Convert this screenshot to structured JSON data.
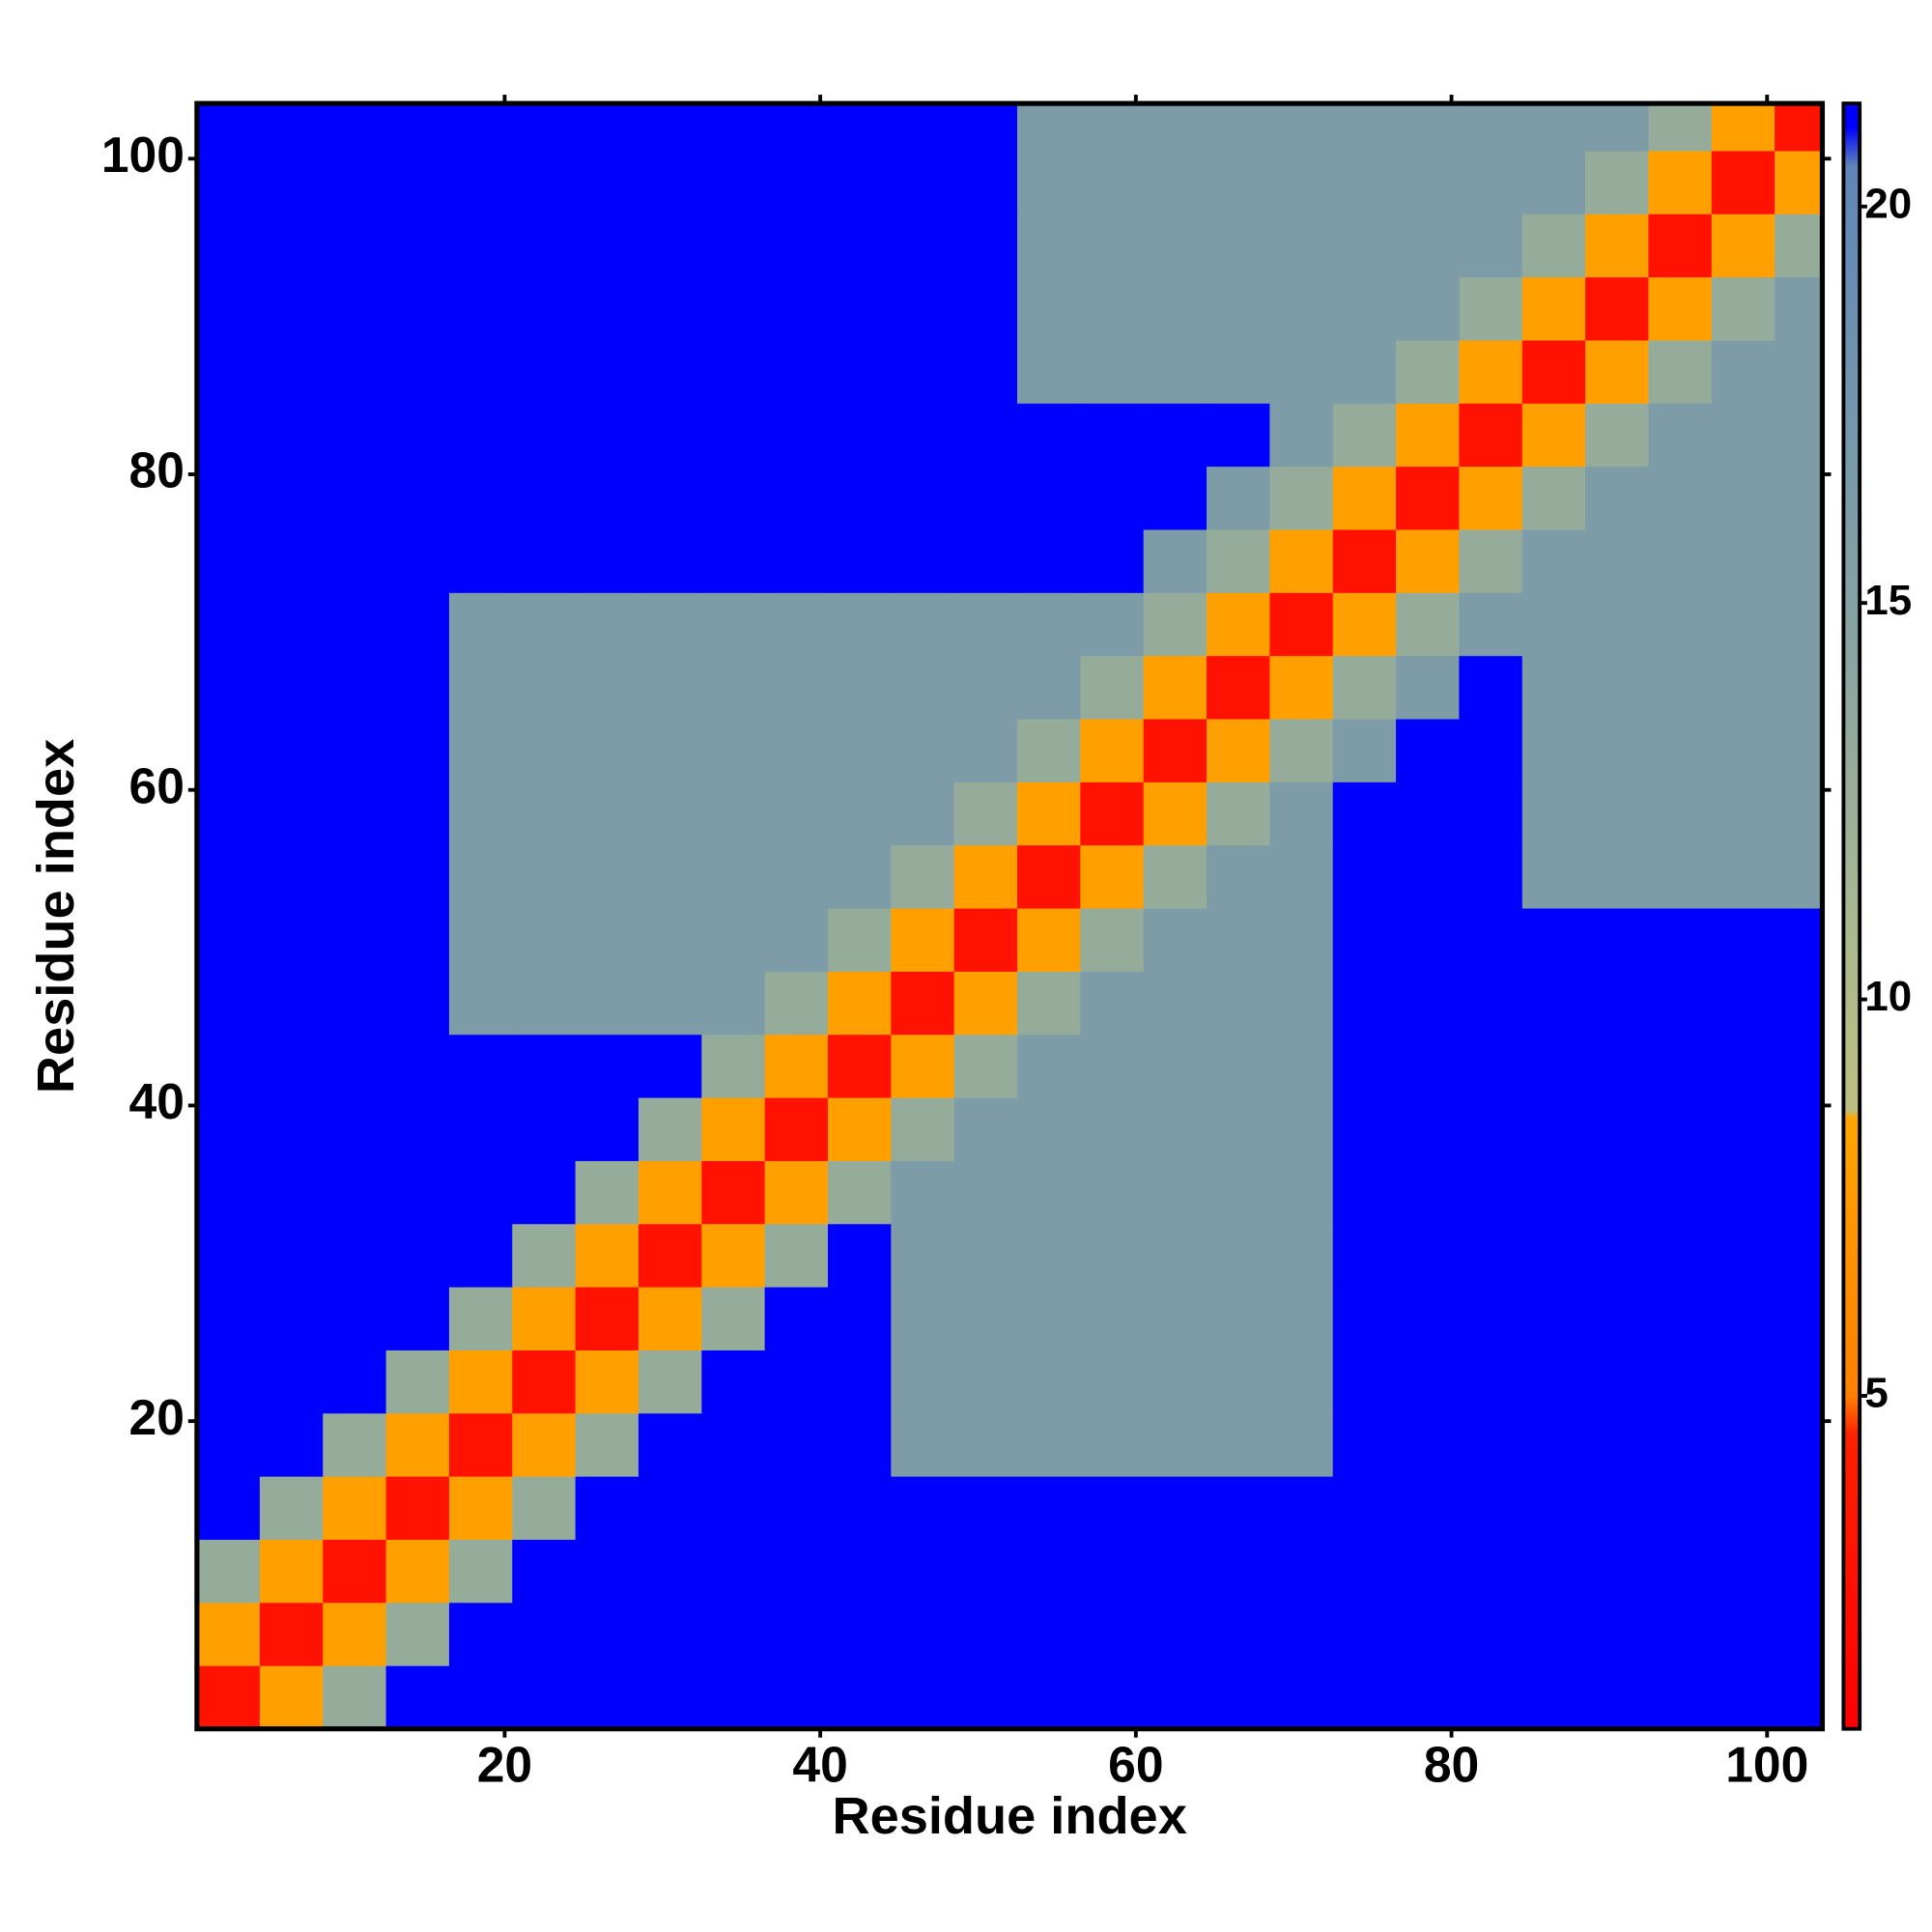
{
  "chart_data": {
    "type": "heatmap",
    "xlabel": "Residue index",
    "ylabel": "Residue index",
    "xbins": [
      0.5,
      4.5,
      8.5,
      12.5,
      16.5,
      20.5,
      24.5,
      28.5,
      32.5,
      36.5,
      40.5,
      44.5,
      48.5,
      52.5,
      56.5,
      60.5,
      64.5,
      68.5,
      72.5,
      76.5,
      80.5,
      84.5,
      88.5,
      92.5,
      96.5,
      100.5,
      103.5
    ],
    "ybins": [
      0.5,
      4.5,
      8.5,
      12.5,
      16.5,
      20.5,
      24.5,
      28.5,
      32.5,
      36.5,
      40.5,
      44.5,
      48.5,
      52.5,
      56.5,
      60.5,
      64.5,
      68.5,
      72.5,
      76.5,
      80.5,
      84.5,
      88.5,
      92.5,
      96.5,
      100.5,
      103.5
    ],
    "xlim": [
      0.5,
      103.5
    ],
    "ylim": [
      0.5,
      103.5
    ],
    "xticks": [
      20,
      40,
      60,
      80,
      100
    ],
    "yticks": [
      20,
      40,
      60,
      80,
      100
    ],
    "zlim": [
      0.8,
      21.3
    ],
    "zticks": [
      5,
      10,
      15,
      20
    ],
    "colorscale": [
      [
        0.8,
        "#ff0000"
      ],
      [
        4.5,
        "#ff2000"
      ],
      [
        5,
        "#ff8000"
      ],
      [
        8.5,
        "#ffa500"
      ],
      [
        8.6,
        "#bdbf80"
      ],
      [
        11,
        "#a8b890"
      ],
      [
        14,
        "#8ca6a0"
      ],
      [
        20.5,
        "#5f86b8"
      ],
      [
        21,
        "#0000ff"
      ],
      [
        21.3,
        "#0000ff"
      ]
    ],
    "z": [
      [
        3,
        8,
        13,
        21,
        21,
        21,
        21,
        21,
        21,
        21,
        21,
        21,
        21,
        21,
        21,
        21,
        21,
        21,
        21,
        21,
        21,
        21,
        21,
        21,
        21,
        21
      ],
      [
        8,
        3,
        8,
        13,
        21,
        21,
        21,
        21,
        21,
        21,
        21,
        21,
        21,
        21,
        21,
        21,
        21,
        21,
        21,
        21,
        21,
        21,
        21,
        21,
        21,
        21
      ],
      [
        13,
        8,
        3,
        8,
        13,
        21,
        21,
        21,
        21,
        21,
        21,
        21,
        21,
        21,
        21,
        21,
        21,
        21,
        21,
        21,
        21,
        21,
        21,
        21,
        21,
        21
      ],
      [
        21,
        13,
        8,
        3,
        8,
        13,
        21,
        21,
        21,
        21,
        21,
        21,
        21,
        21,
        21,
        21,
        21,
        21,
        21,
        21,
        21,
        21,
        21,
        21,
        21,
        21
      ],
      [
        21,
        21,
        13,
        8,
        3,
        8,
        13,
        21,
        21,
        21,
        21,
        16,
        16,
        16,
        16,
        16,
        16,
        16,
        21,
        21,
        21,
        21,
        21,
        21,
        21,
        21
      ],
      [
        21,
        21,
        21,
        13,
        8,
        3,
        8,
        13,
        21,
        21,
        21,
        16,
        16,
        16,
        16,
        16,
        16,
        16,
        21,
        21,
        21,
        21,
        21,
        21,
        21,
        21
      ],
      [
        21,
        21,
        21,
        21,
        13,
        8,
        3,
        8,
        13,
        21,
        21,
        16,
        16,
        16,
        16,
        16,
        16,
        16,
        21,
        21,
        21,
        21,
        21,
        21,
        21,
        21
      ],
      [
        21,
        21,
        21,
        21,
        21,
        13,
        8,
        3,
        8,
        13,
        21,
        16,
        16,
        16,
        16,
        16,
        16,
        16,
        21,
        21,
        21,
        21,
        21,
        21,
        21,
        21
      ],
      [
        21,
        21,
        21,
        21,
        21,
        21,
        13,
        8,
        3,
        8,
        13,
        16,
        16,
        16,
        16,
        16,
        16,
        16,
        21,
        21,
        21,
        21,
        21,
        21,
        21,
        21
      ],
      [
        21,
        21,
        21,
        21,
        21,
        21,
        21,
        13,
        8,
        3,
        8,
        13,
        16,
        16,
        16,
        16,
        16,
        16,
        21,
        21,
        21,
        21,
        21,
        21,
        21,
        21
      ],
      [
        21,
        21,
        21,
        21,
        21,
        21,
        21,
        21,
        13,
        8,
        3,
        8,
        13,
        16,
        16,
        16,
        16,
        16,
        21,
        21,
        21,
        21,
        21,
        21,
        21,
        21
      ],
      [
        21,
        21,
        21,
        21,
        16,
        16,
        16,
        16,
        16,
        13,
        8,
        3,
        8,
        13,
        16,
        16,
        16,
        16,
        21,
        21,
        21,
        21,
        21,
        21,
        21,
        21
      ],
      [
        21,
        21,
        21,
        21,
        16,
        16,
        16,
        16,
        16,
        16,
        13,
        8,
        3,
        8,
        13,
        16,
        16,
        16,
        21,
        21,
        21,
        21,
        21,
        21,
        21,
        21
      ],
      [
        21,
        21,
        21,
        21,
        16,
        16,
        16,
        16,
        16,
        16,
        16,
        13,
        8,
        3,
        8,
        13,
        16,
        16,
        21,
        21,
        21,
        16,
        16,
        16,
        16,
        16
      ],
      [
        21,
        21,
        21,
        21,
        16,
        16,
        16,
        16,
        16,
        16,
        16,
        16,
        13,
        8,
        3,
        8,
        13,
        16,
        21,
        21,
        21,
        16,
        16,
        16,
        16,
        16
      ],
      [
        21,
        21,
        21,
        21,
        16,
        16,
        16,
        16,
        16,
        16,
        16,
        16,
        16,
        13,
        8,
        3,
        8,
        13,
        16,
        21,
        21,
        16,
        16,
        16,
        16,
        16
      ],
      [
        21,
        21,
        21,
        21,
        16,
        16,
        16,
        16,
        16,
        16,
        16,
        16,
        16,
        16,
        13,
        8,
        3,
        8,
        13,
        16,
        21,
        16,
        16,
        16,
        16,
        16
      ],
      [
        21,
        21,
        21,
        21,
        16,
        16,
        16,
        16,
        16,
        16,
        16,
        16,
        16,
        16,
        16,
        13,
        8,
        3,
        8,
        13,
        16,
        16,
        16,
        16,
        16,
        16
      ],
      [
        21,
        21,
        21,
        21,
        21,
        21,
        21,
        21,
        21,
        21,
        21,
        21,
        21,
        21,
        21,
        16,
        13,
        8,
        3,
        8,
        13,
        16,
        16,
        16,
        16,
        16
      ],
      [
        21,
        21,
        21,
        21,
        21,
        21,
        21,
        21,
        21,
        21,
        21,
        21,
        21,
        21,
        21,
        21,
        16,
        13,
        8,
        3,
        8,
        13,
        16,
        16,
        16,
        16
      ],
      [
        21,
        21,
        21,
        21,
        21,
        21,
        21,
        21,
        21,
        21,
        21,
        21,
        21,
        21,
        21,
        21,
        21,
        16,
        13,
        8,
        3,
        8,
        13,
        16,
        16,
        16
      ],
      [
        21,
        21,
        21,
        21,
        21,
        21,
        21,
        21,
        21,
        21,
        21,
        21,
        21,
        16,
        16,
        16,
        16,
        16,
        16,
        13,
        8,
        3,
        8,
        13,
        16,
        16
      ],
      [
        21,
        21,
        21,
        21,
        21,
        21,
        21,
        21,
        21,
        21,
        21,
        21,
        21,
        16,
        16,
        16,
        16,
        16,
        16,
        16,
        13,
        8,
        3,
        8,
        13,
        16
      ],
      [
        21,
        21,
        21,
        21,
        21,
        21,
        21,
        21,
        21,
        21,
        21,
        21,
        21,
        16,
        16,
        16,
        16,
        16,
        16,
        16,
        16,
        13,
        8,
        3,
        8,
        13
      ],
      [
        21,
        21,
        21,
        21,
        21,
        21,
        21,
        21,
        21,
        21,
        21,
        21,
        21,
        16,
        16,
        16,
        16,
        16,
        16,
        16,
        16,
        16,
        13,
        8,
        3,
        8
      ],
      [
        21,
        21,
        21,
        21,
        21,
        21,
        21,
        21,
        21,
        21,
        21,
        21,
        21,
        16,
        16,
        16,
        16,
        16,
        16,
        16,
        16,
        16,
        16,
        13,
        8,
        3
      ]
    ]
  }
}
